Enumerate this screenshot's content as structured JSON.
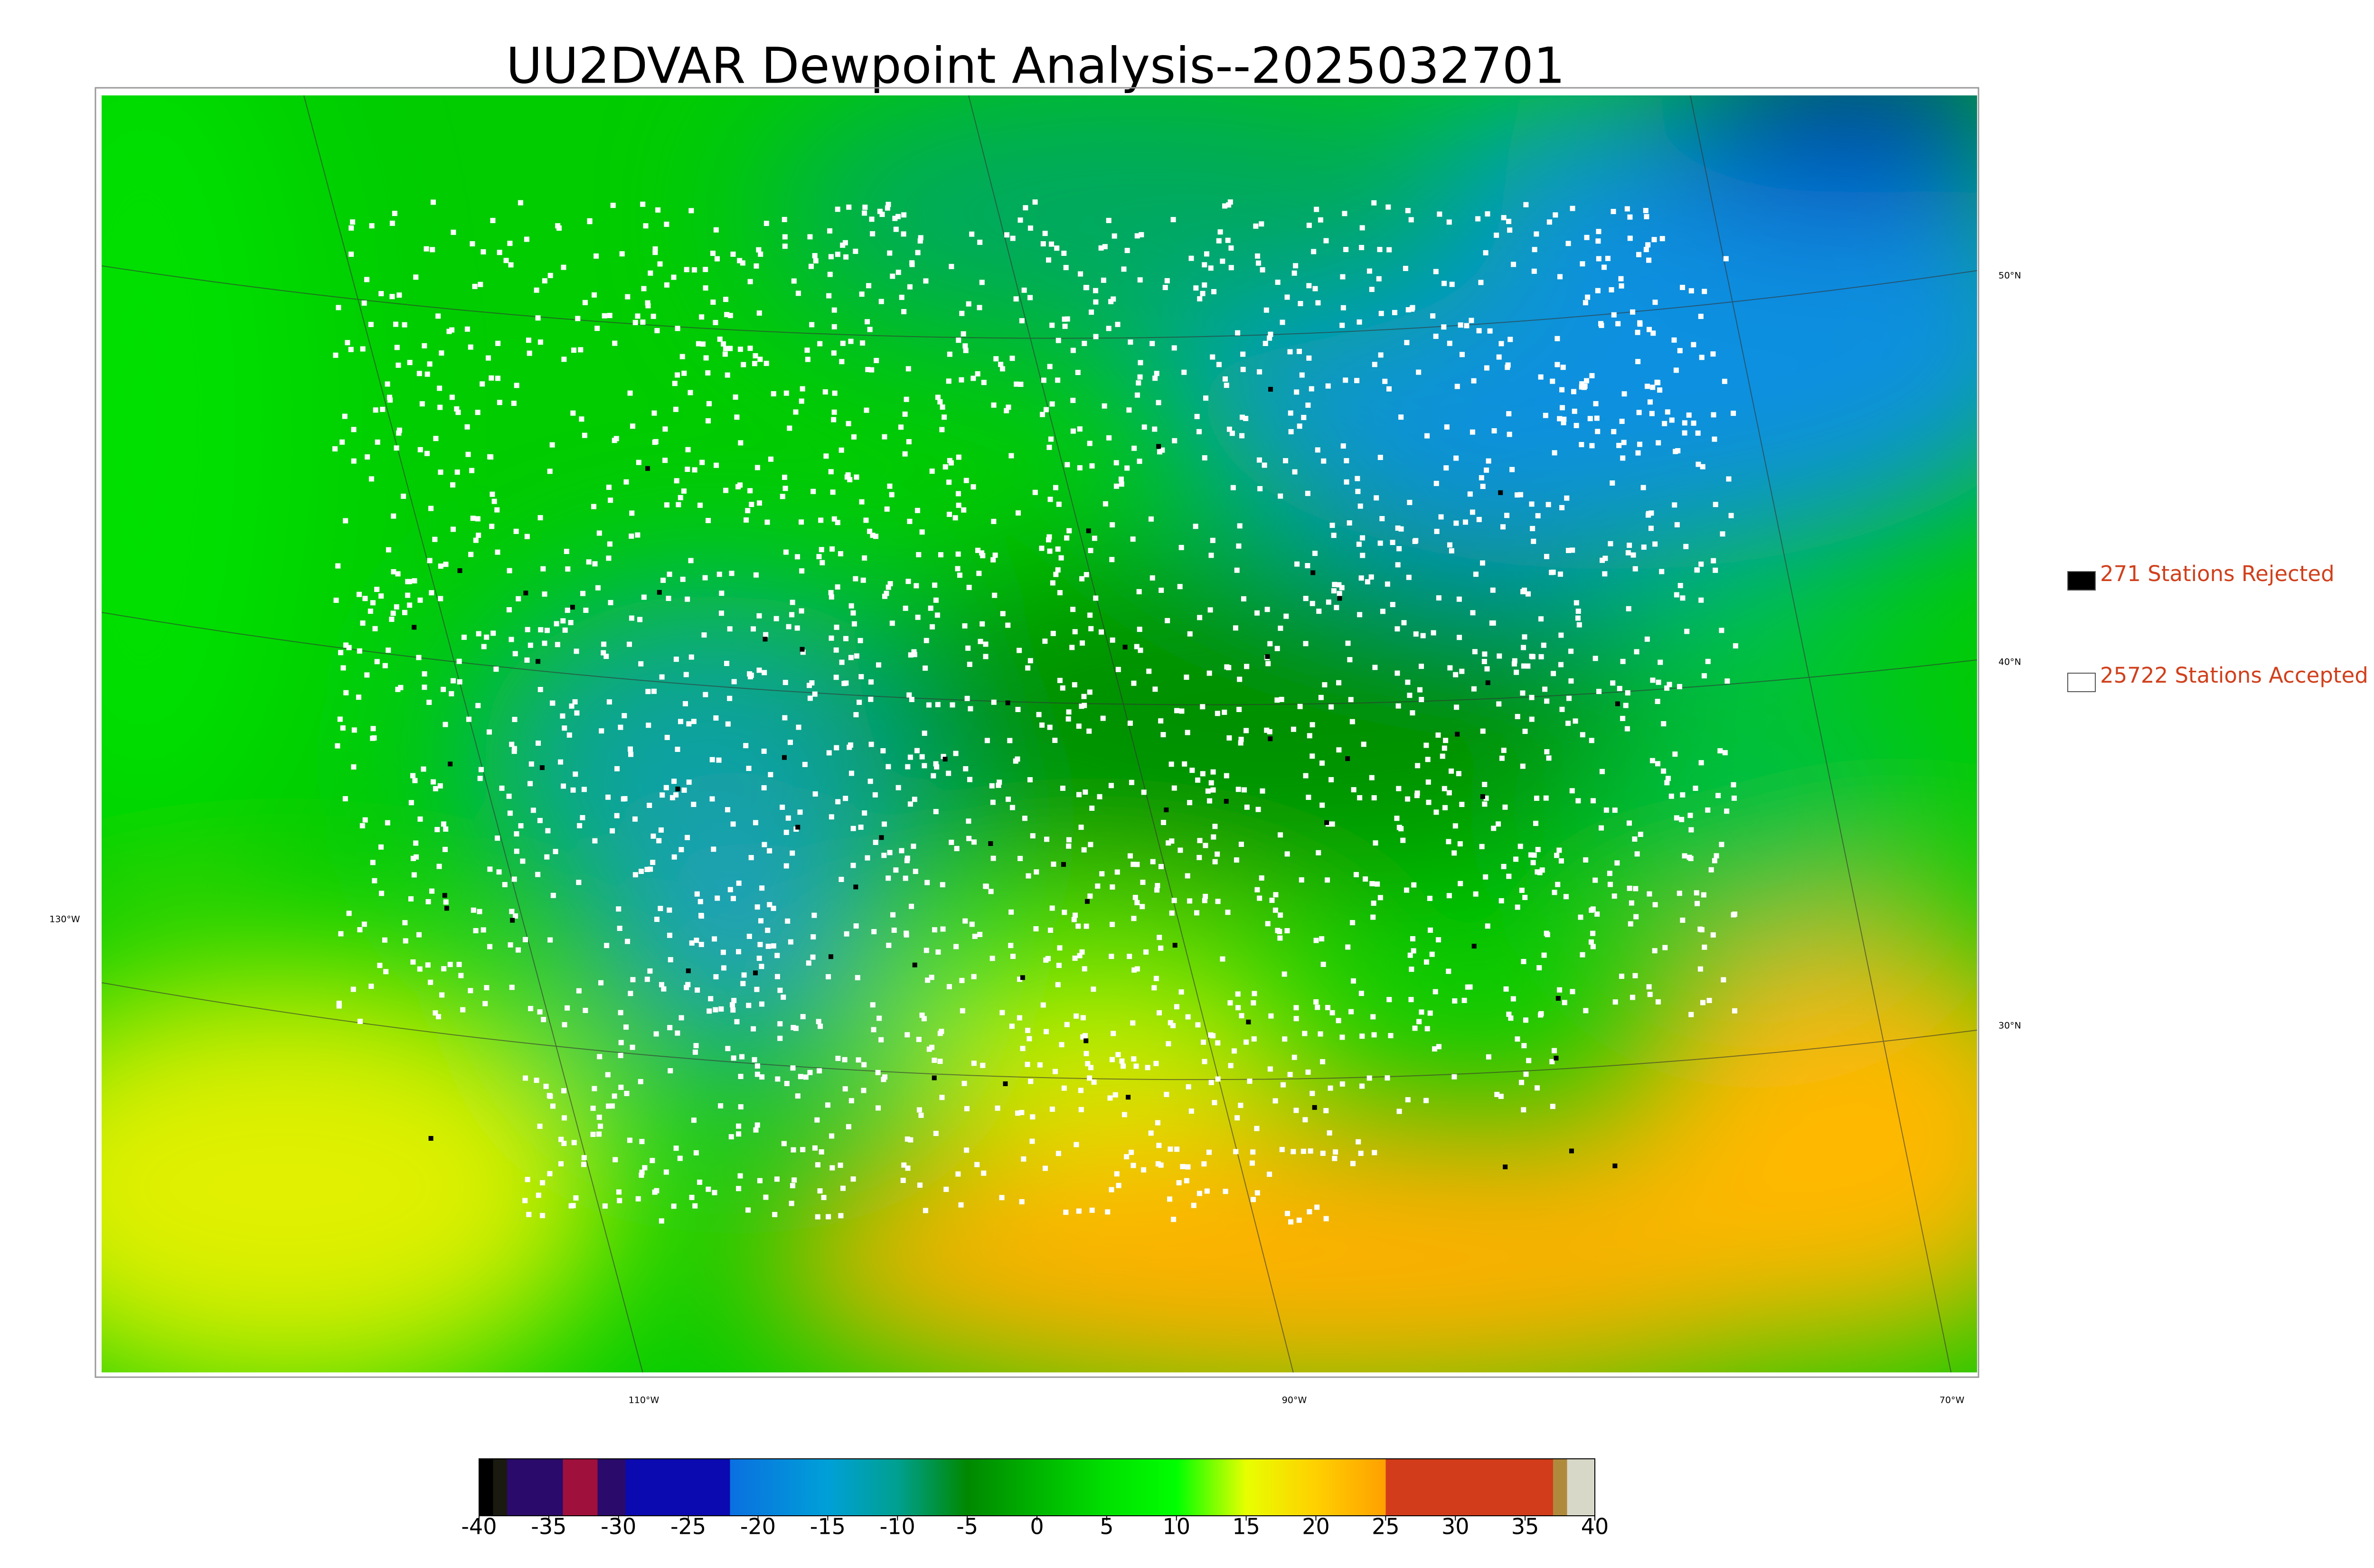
{
  "title": "UU2DVAR Dewpoint Analysis--2025032701",
  "legend": [
    {
      "label": "271 Stations Rejected",
      "color": "#000000"
    },
    {
      "label": "25722 Stations Accepted",
      "color": "#ffffff"
    }
  ],
  "graticule": {
    "lat_labels": [
      "50°N",
      "40°N",
      "30°N"
    ],
    "lon_labels": [
      "130°W",
      "110°W",
      "90°W",
      "70°W"
    ]
  },
  "colorbar": {
    "lim": [
      -40,
      40
    ],
    "ticks": [
      -40,
      -35,
      -30,
      -25,
      -20,
      -15,
      -10,
      -5,
      0,
      5,
      10,
      15,
      20,
      25,
      30,
      35,
      40
    ],
    "stops": [
      {
        "value": -40,
        "color": "#000000"
      },
      {
        "value": -39,
        "color": "#000000"
      },
      {
        "value": -39,
        "color": "#1a1a10"
      },
      {
        "value": -38,
        "color": "#1a1a10"
      },
      {
        "value": -38,
        "color": "#2a0a6a"
      },
      {
        "value": -34,
        "color": "#2a0a6a"
      },
      {
        "value": -34,
        "color": "#a0103c"
      },
      {
        "value": -31.5,
        "color": "#a0103c"
      },
      {
        "value": -31.5,
        "color": "#2a0a6a"
      },
      {
        "value": -29.5,
        "color": "#2a0a6a"
      },
      {
        "value": -29.5,
        "color": "#0a0ab0"
      },
      {
        "value": -22,
        "color": "#0a0ab0"
      },
      {
        "value": -22,
        "color": "#0a70e0"
      },
      {
        "value": -15,
        "color": "#00a0d8"
      },
      {
        "value": -10,
        "color": "#00a090"
      },
      {
        "value": -5,
        "color": "#008800"
      },
      {
        "value": 0,
        "color": "#00b400"
      },
      {
        "value": 5,
        "color": "#00e000"
      },
      {
        "value": 10,
        "color": "#00ff00"
      },
      {
        "value": 15,
        "color": "#e8ff00"
      },
      {
        "value": 20,
        "color": "#ffd000"
      },
      {
        "value": 25,
        "color": "#ffa000"
      },
      {
        "value": 25,
        "color": "#d23c1a"
      },
      {
        "value": 37,
        "color": "#d23c1a"
      },
      {
        "value": 37,
        "color": "#b08a3c"
      },
      {
        "value": 38,
        "color": "#b08a3c"
      },
      {
        "value": 38,
        "color": "#d8d8c8"
      },
      {
        "value": 40,
        "color": "#d8d8c8"
      }
    ]
  }
}
